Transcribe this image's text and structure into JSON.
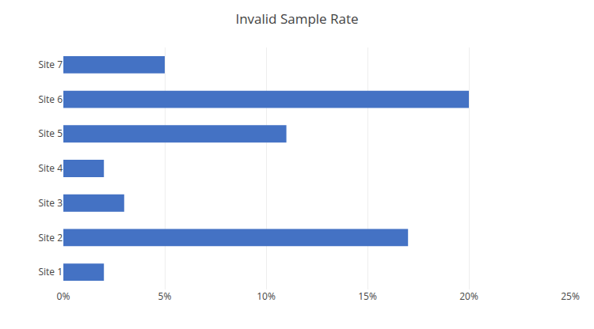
{
  "chart_data": {
    "type": "bar",
    "orientation": "horizontal",
    "title": "Invalid Sample Rate",
    "categories": [
      "Site 1",
      "Site 2",
      "Site 3",
      "Site 4",
      "Site 5",
      "Site 6",
      "Site 7"
    ],
    "values": [
      2.0,
      17.0,
      3.0,
      2.0,
      11.0,
      20.0,
      5.0
    ],
    "color": "#4472C4",
    "xlim": [
      0,
      25
    ],
    "xticks": [
      {
        "value": 0,
        "label": "0%"
      },
      {
        "value": 5,
        "label": "5%"
      },
      {
        "value": 10,
        "label": "10%"
      },
      {
        "value": 15,
        "label": "15%"
      },
      {
        "value": 20,
        "label": "20%"
      },
      {
        "value": 25,
        "label": "25%"
      }
    ],
    "grid": true
  }
}
